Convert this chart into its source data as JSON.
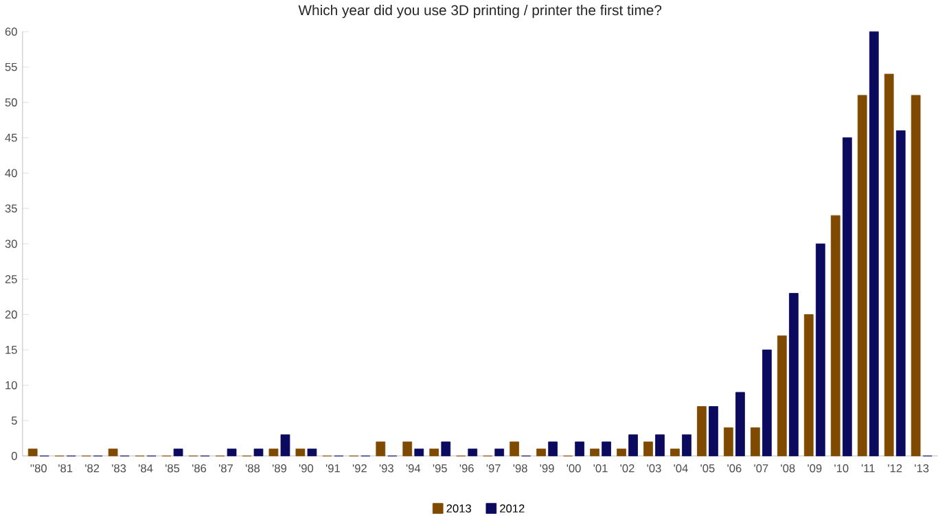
{
  "chart_data": {
    "type": "bar",
    "title": "Which year did you use 3D printing / printer the first time?",
    "categories": [
      "''80",
      "'81",
      "'82",
      "'83",
      "'84",
      "'85",
      "'86",
      "'87",
      "'88",
      "'89",
      "'90",
      "'91",
      "'92",
      "'93",
      "'94",
      "'95",
      "'96",
      "'97",
      "'98",
      "'99",
      "'00",
      "'01",
      "'02",
      "'03",
      "'04",
      "'05",
      "'06",
      "'07",
      "'08",
      "'09",
      "'10",
      "'11",
      "'12",
      "'13"
    ],
    "series": [
      {
        "name": "2013",
        "color": "#7f4a00",
        "values": [
          1,
          0,
          0,
          1,
          0,
          0,
          0,
          0,
          0,
          1,
          1,
          0,
          0,
          2,
          2,
          1,
          0,
          0,
          2,
          1,
          0,
          1,
          1,
          2,
          1,
          7,
          4,
          4,
          17,
          20,
          34,
          51,
          54,
          51
        ]
      },
      {
        "name": "2012",
        "color": "#0c0a5e",
        "values": [
          0,
          0,
          0,
          0,
          0,
          1,
          0,
          1,
          1,
          3,
          1,
          0,
          0,
          0,
          1,
          2,
          1,
          1,
          0,
          2,
          2,
          2,
          3,
          3,
          3,
          7,
          9,
          15,
          23,
          30,
          45,
          60,
          46,
          0
        ]
      }
    ],
    "ylim": [
      0,
      60
    ],
    "yticks": [
      0,
      5,
      10,
      15,
      20,
      25,
      30,
      35,
      40,
      45,
      50,
      55,
      60
    ],
    "legend": "bottom",
    "grid": false
  }
}
